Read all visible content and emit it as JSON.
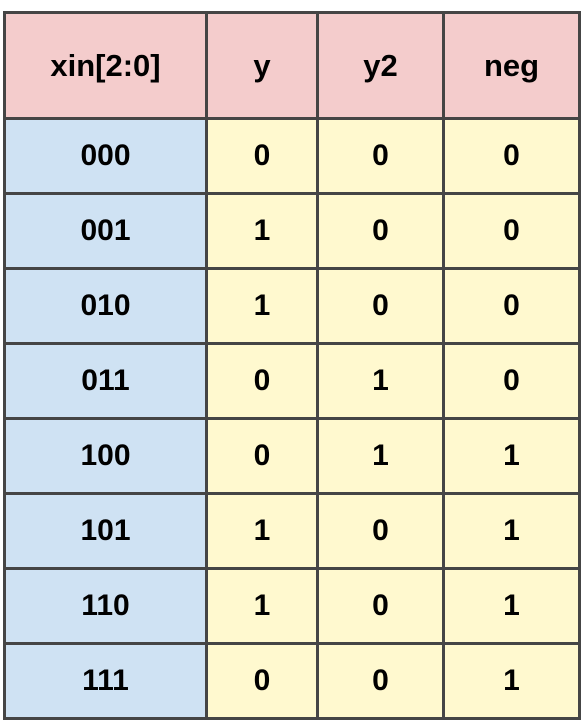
{
  "colors": {
    "header_bg": "#f4cccc",
    "input_bg": "#cfe2f3",
    "output_bg": "#fff9cf",
    "border": "#454545"
  },
  "table": {
    "headers": [
      "xin[2:0]",
      "y",
      "y2",
      "neg"
    ],
    "rows": [
      [
        "000",
        "0",
        "0",
        "0"
      ],
      [
        "001",
        "1",
        "0",
        "0"
      ],
      [
        "010",
        "1",
        "0",
        "0"
      ],
      [
        "011",
        "0",
        "1",
        "0"
      ],
      [
        "100",
        "0",
        "1",
        "1"
      ],
      [
        "101",
        "1",
        "0",
        "1"
      ],
      [
        "110",
        "1",
        "0",
        "1"
      ],
      [
        "111",
        "0",
        "0",
        "1"
      ]
    ]
  }
}
